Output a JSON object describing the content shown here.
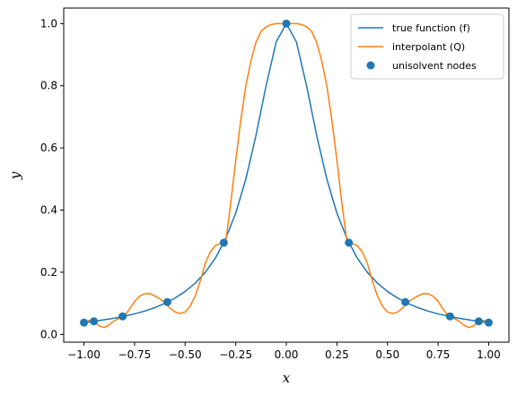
{
  "chart_data": {
    "type": "line",
    "xlabel": "x",
    "ylabel": "y",
    "xlim": [
      -1.1,
      1.1
    ],
    "ylim": [
      -0.025,
      1.05
    ],
    "x_ticks": [
      -1.0,
      -0.75,
      -0.5,
      -0.25,
      0.0,
      0.25,
      0.5,
      0.75,
      1.0
    ],
    "x_tick_labels": [
      "−1.00",
      "−0.75",
      "−0.50",
      "−0.25",
      "0.00",
      "0.25",
      "0.50",
      "0.75",
      "1.00"
    ],
    "y_ticks": [
      0.0,
      0.2,
      0.4,
      0.6,
      0.8,
      1.0
    ],
    "y_tick_labels": [
      "0.0",
      "0.2",
      "0.4",
      "0.6",
      "0.8",
      "1.0"
    ],
    "grid": false,
    "legend_position": "top-right",
    "series": [
      {
        "name": "true function (f)",
        "kind": "line",
        "color": "#1f77b4",
        "x": [
          -1.0,
          -0.95,
          -0.9,
          -0.85,
          -0.8,
          -0.75,
          -0.7,
          -0.65,
          -0.6,
          -0.55,
          -0.5,
          -0.45,
          -0.4,
          -0.35,
          -0.3,
          -0.25,
          -0.2,
          -0.15,
          -0.1,
          -0.05,
          0.0,
          0.05,
          0.1,
          0.15,
          0.2,
          0.25,
          0.3,
          0.35,
          0.4,
          0.45,
          0.5,
          0.55,
          0.6,
          0.65,
          0.7,
          0.75,
          0.8,
          0.85,
          0.9,
          0.95,
          1.0
        ],
        "y": [
          0.038,
          0.042,
          0.047,
          0.052,
          0.059,
          0.066,
          0.075,
          0.086,
          0.1,
          0.117,
          0.138,
          0.165,
          0.2,
          0.246,
          0.308,
          0.39,
          0.5,
          0.64,
          0.8,
          0.941,
          1.0,
          0.941,
          0.8,
          0.64,
          0.5,
          0.39,
          0.308,
          0.246,
          0.2,
          0.165,
          0.138,
          0.117,
          0.1,
          0.086,
          0.075,
          0.066,
          0.059,
          0.052,
          0.047,
          0.042,
          0.038
        ]
      },
      {
        "name": "interpolant (Q)",
        "kind": "line",
        "color": "#ff7f0e",
        "x": [
          -1.0,
          -0.975,
          -0.95,
          -0.925,
          -0.9,
          -0.875,
          -0.85,
          -0.825,
          -0.8,
          -0.775,
          -0.75,
          -0.725,
          -0.7,
          -0.675,
          -0.65,
          -0.625,
          -0.6,
          -0.575,
          -0.55,
          -0.525,
          -0.5,
          -0.475,
          -0.45,
          -0.425,
          -0.4,
          -0.375,
          -0.35,
          -0.325,
          -0.3,
          -0.275,
          -0.25,
          -0.225,
          -0.2,
          -0.175,
          -0.15,
          -0.125,
          -0.1,
          -0.075,
          -0.05,
          -0.025,
          0.0,
          0.025,
          0.05,
          0.075,
          0.1,
          0.125,
          0.15,
          0.175,
          0.2,
          0.225,
          0.25,
          0.275,
          0.3,
          0.325,
          0.35,
          0.375,
          0.4,
          0.425,
          0.45,
          0.475,
          0.5,
          0.525,
          0.55,
          0.575,
          0.6,
          0.625,
          0.65,
          0.675,
          0.7,
          0.725,
          0.75,
          0.775,
          0.8,
          0.825,
          0.85,
          0.875,
          0.9,
          0.925,
          0.95,
          0.975,
          1.0
        ],
        "y": [
          0.038,
          0.045,
          0.04,
          0.027,
          0.022,
          0.031,
          0.044,
          0.052,
          0.06,
          0.081,
          0.106,
          0.123,
          0.131,
          0.131,
          0.124,
          0.114,
          0.103,
          0.085,
          0.072,
          0.067,
          0.072,
          0.091,
          0.124,
          0.172,
          0.23,
          0.266,
          0.286,
          0.292,
          0.295,
          0.42,
          0.56,
          0.69,
          0.8,
          0.88,
          0.94,
          0.975,
          0.99,
          0.997,
          1.0,
          1.0,
          1.0,
          1.0,
          1.0,
          0.997,
          0.99,
          0.975,
          0.94,
          0.88,
          0.8,
          0.69,
          0.56,
          0.42,
          0.295,
          0.292,
          0.286,
          0.266,
          0.23,
          0.172,
          0.124,
          0.091,
          0.072,
          0.067,
          0.072,
          0.085,
          0.103,
          0.114,
          0.124,
          0.131,
          0.131,
          0.123,
          0.106,
          0.081,
          0.06,
          0.052,
          0.044,
          0.031,
          0.022,
          0.027,
          0.04,
          0.045,
          0.038
        ]
      },
      {
        "name": "unisolvent nodes",
        "kind": "scatter",
        "color": "#1f77b4",
        "x": [
          -1.0,
          -0.951,
          -0.809,
          -0.588,
          -0.309,
          0.0,
          0.309,
          0.588,
          0.809,
          0.951,
          1.0
        ],
        "y": [
          0.038,
          0.042,
          0.058,
          0.104,
          0.295,
          1.0,
          0.295,
          0.104,
          0.058,
          0.042,
          0.038
        ]
      }
    ]
  }
}
